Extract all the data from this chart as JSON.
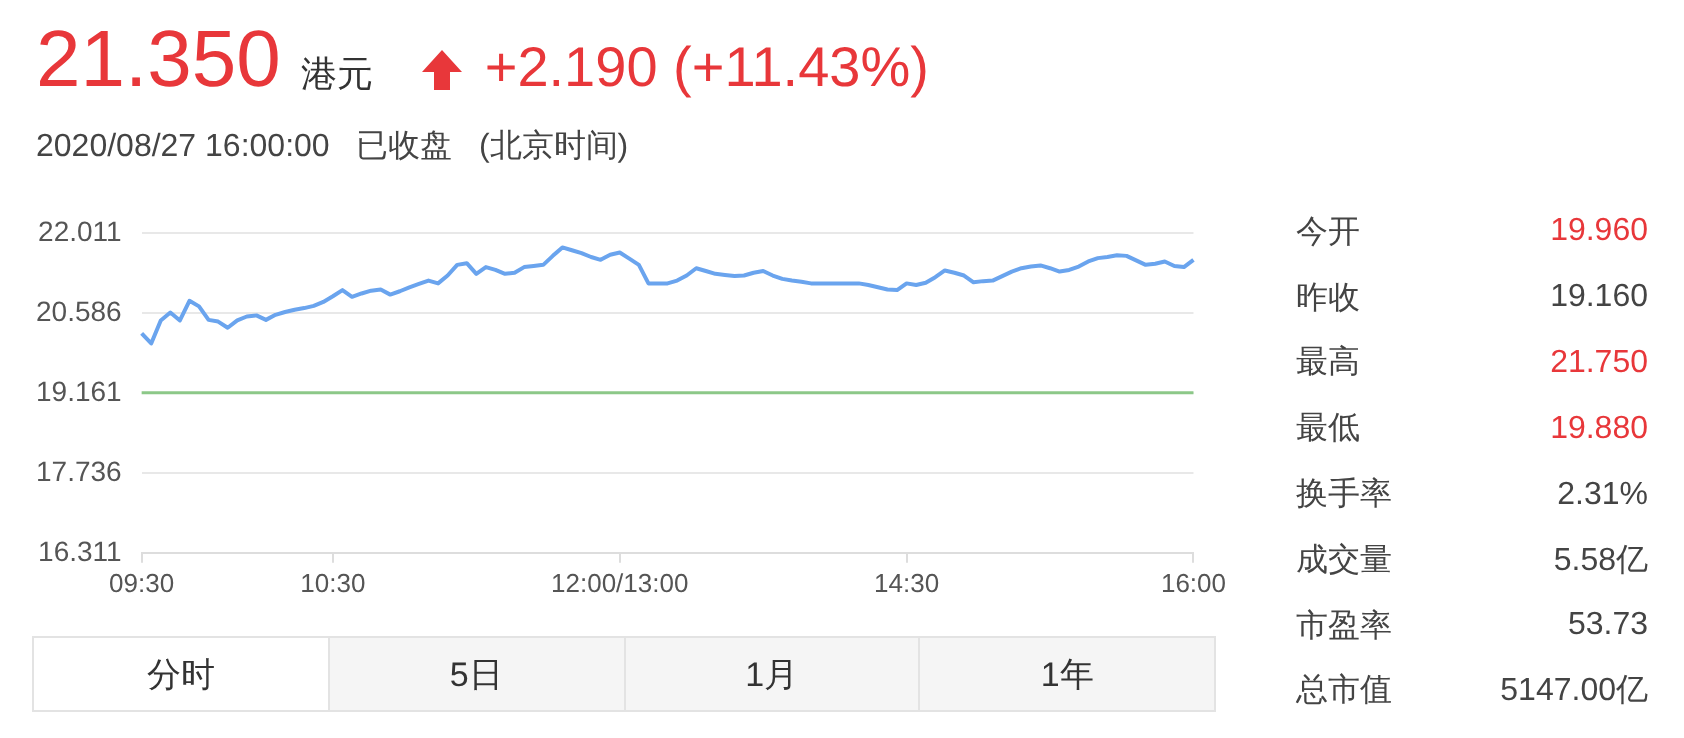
{
  "chart_data": {
    "type": "line",
    "title": "21.350",
    "subtitle": "2020/08/27 16:00:00   已收盘   (北京时间)",
    "annotations": [
      "港元",
      "+2.190 (+11.43%)",
      "今开",
      "19.960",
      "昨收",
      "19.160",
      "最高",
      "21.750",
      "最低",
      "19.880",
      "换手率",
      "2.31%",
      "成交量",
      "5.58亿",
      "市盈率",
      "53.73",
      "总市值",
      "5147.00亿",
      "分时",
      "5日",
      "1月",
      "1年"
    ],
    "categories": [
      "09:30",
      null,
      null,
      null,
      null,
      null,
      null,
      null,
      null,
      null,
      null,
      null,
      null,
      null,
      null,
      null,
      null,
      null,
      null,
      null,
      "10:30",
      null,
      null,
      null,
      null,
      null,
      null,
      null,
      null,
      null,
      null,
      null,
      null,
      null,
      null,
      null,
      null,
      null,
      null,
      null,
      null,
      null,
      null,
      null,
      null,
      null,
      null,
      null,
      null,
      null,
      "12:00/13:00",
      null,
      null,
      null,
      null,
      null,
      null,
      null,
      null,
      null,
      null,
      null,
      null,
      null,
      null,
      null,
      null,
      null,
      null,
      null,
      null,
      null,
      null,
      null,
      null,
      null,
      null,
      null,
      null,
      null,
      "14:30",
      null,
      null,
      null,
      null,
      null,
      null,
      null,
      null,
      null,
      null,
      null,
      null,
      null,
      null,
      null,
      null,
      null,
      null,
      null,
      null,
      null,
      null,
      null,
      null,
      null,
      null,
      null,
      null,
      null,
      "16:00"
    ],
    "series": [
      {
        "color": "#6aa4ee",
        "values": [
          20.22,
          20.04,
          20.45,
          20.59,
          20.45,
          20.8,
          20.7,
          20.46,
          20.43,
          20.32,
          20.45,
          20.52,
          20.54,
          20.46,
          20.55,
          20.6,
          20.64,
          20.67,
          20.71,
          20.78,
          20.88,
          20.99,
          20.87,
          20.93,
          20.98,
          21.0,
          20.91,
          20.97,
          21.04,
          21.1,
          21.16,
          21.11,
          21.25,
          21.44,
          21.47,
          21.28,
          21.4,
          21.35,
          21.28,
          21.3,
          21.4,
          21.42,
          21.44,
          21.6,
          21.75,
          21.7,
          21.65,
          21.58,
          21.53,
          21.62,
          21.66,
          21.55,
          21.44,
          21.11,
          21.11,
          21.11,
          21.16,
          21.25,
          21.38,
          21.33,
          21.28,
          21.26,
          21.24,
          21.25,
          21.3,
          21.33,
          21.25,
          21.19,
          21.16,
          21.14,
          21.11,
          21.11,
          21.11,
          21.11,
          21.11,
          21.11,
          21.08,
          21.04,
          21.0,
          20.99,
          21.11,
          21.08,
          21.12,
          21.22,
          21.34,
          21.3,
          21.25,
          21.13,
          21.15,
          21.16,
          21.24,
          21.32,
          21.38,
          21.41,
          21.43,
          21.38,
          21.32,
          21.35,
          21.41,
          21.5,
          21.56,
          21.58,
          21.61,
          21.6,
          21.52,
          21.44,
          21.46,
          21.5,
          21.42,
          21.4,
          21.53
        ]
      }
    ],
    "ylim": [
      16.311,
      22.011
    ],
    "yticks": [
      16.311,
      17.736,
      19.161,
      20.586,
      22.011
    ],
    "ref_lines": [
      {
        "axis": "y",
        "value": 19.16,
        "color": "#8cc888"
      }
    ],
    "grid": "y",
    "legend": false,
    "marker": "none",
    "line_style": "solid"
  }
}
